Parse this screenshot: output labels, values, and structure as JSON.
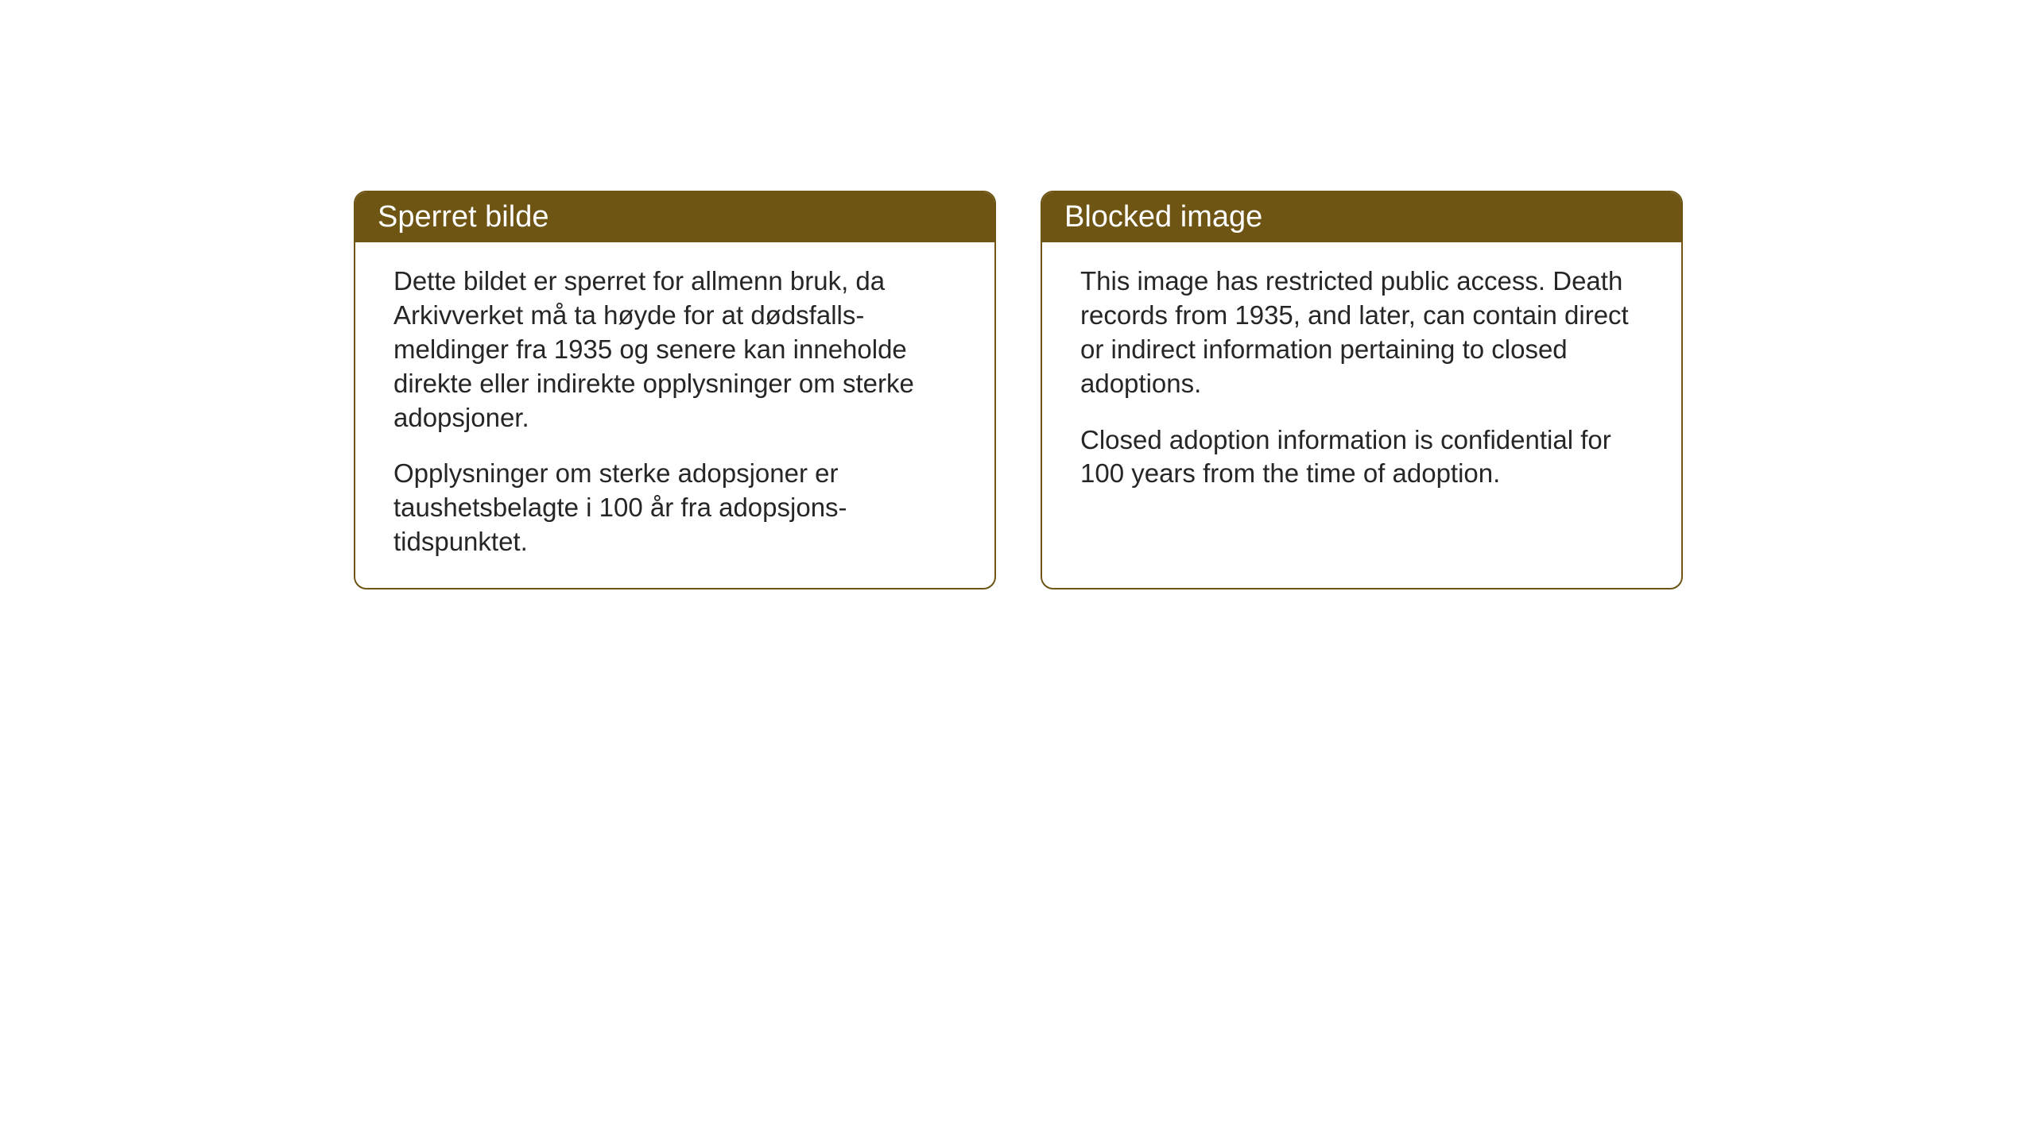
{
  "layout": {
    "background_color": "#ffffff",
    "box_border_color": "#6e5514",
    "header_bg_color": "#6e5514",
    "header_text_color": "#ffffff",
    "body_text_color": "#262626",
    "border_radius": 16,
    "border_width": 2,
    "header_fontsize": 38,
    "body_fontsize": 33
  },
  "boxes": {
    "left": {
      "title": "Sperret bilde",
      "paragraph1": "Dette bildet er sperret for allmenn bruk, da Arkivverket må ta høyde for at dødsfalls-meldinger fra 1935 og senere kan inneholde direkte eller indirekte opplysninger om sterke adopsjoner.",
      "paragraph2": "Opplysninger om sterke adopsjoner er taushetsbelagte i 100 år fra adopsjons-tidspunktet."
    },
    "right": {
      "title": "Blocked image",
      "paragraph1": "This image has restricted public access. Death records from 1935, and later, can contain direct or indirect information pertaining to closed adoptions.",
      "paragraph2": "Closed adoption information is confidential for 100 years from the time of adoption."
    }
  }
}
